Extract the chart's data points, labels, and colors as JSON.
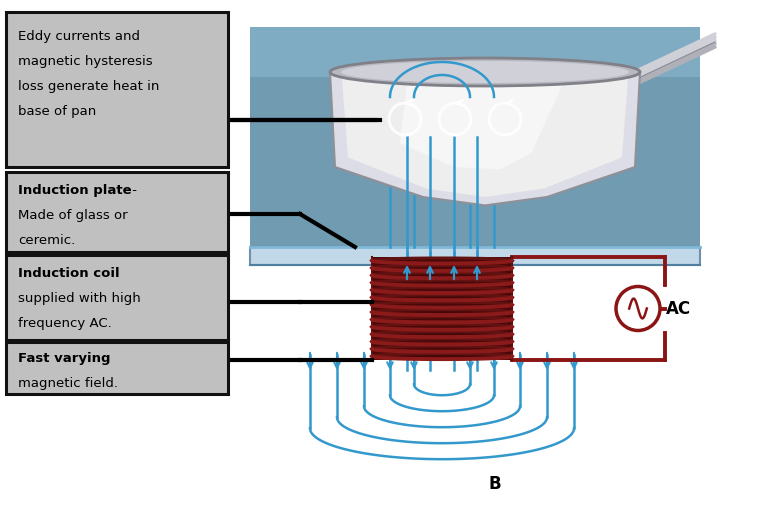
{
  "bg_color": "#ffffff",
  "plate_surface_color": "#5a9ab5",
  "plate_surface_color2": "#7abfda",
  "plate_edge_color": "#8ac0d5",
  "plate_bottom_color": "#c8dde8",
  "coil_color": "#8b1a1a",
  "coil_highlight": "#c05050",
  "field_line_color": "#3399cc",
  "field_line_color2": "#55bbee",
  "circuit_color": "#8b1515",
  "pan_outer_color": "#c0c0c0",
  "pan_inner_color": "#e8e8f0",
  "pan_rim_color": "#a8a8b0",
  "pan_body_color": "#d5d5df",
  "pan_handle_color": "#c8c8c8",
  "label_box_color": "#c0c0c0",
  "label_box_edge": "#111111",
  "eddy_label": [
    "Eddy currents and",
    "magnetic hysteresis",
    "loss generate heat in",
    "base of pan"
  ],
  "B_label": "B",
  "AC_label": "AC",
  "plate_bg_color": "#7090a8"
}
